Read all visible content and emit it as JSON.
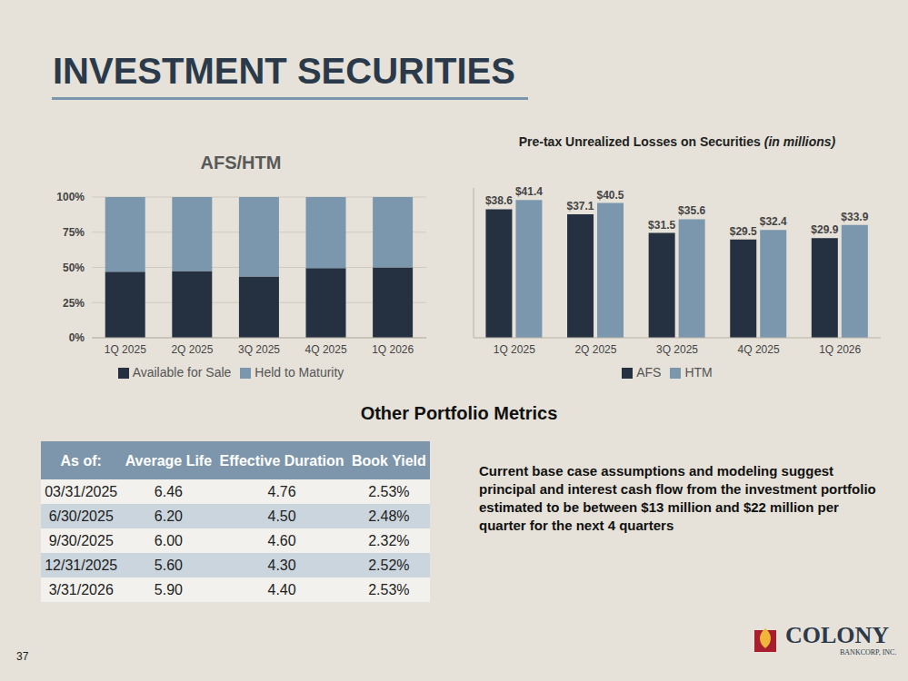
{
  "title": "INVESTMENT SECURITIES",
  "chart_data": [
    {
      "type": "bar",
      "title": "AFS/HTM",
      "categories": [
        "1Q 2025",
        "2Q 2025",
        "3Q 2025",
        "4Q 2025",
        "1Q 2026"
      ],
      "series": [
        {
          "name": "Available for Sale",
          "color": "#253140",
          "values": [
            47,
            47.5,
            43.5,
            49.5,
            50
          ]
        },
        {
          "name": "Held to Maturity",
          "color": "#7b97ad",
          "values": [
            53,
            52.5,
            56.5,
            50.5,
            50
          ]
        }
      ],
      "stacked": true,
      "ylim": [
        0,
        100
      ],
      "yticks": [
        {
          "value": 0,
          "label": "0%"
        },
        {
          "value": 25,
          "label": "25%"
        },
        {
          "value": 50,
          "label": "50%"
        },
        {
          "value": 75,
          "label": "75%"
        },
        {
          "value": 100,
          "label": "100%"
        }
      ],
      "grid": true,
      "legend": "bottom"
    },
    {
      "type": "bar",
      "title": "Pre-tax Unrealized Losses on Securities",
      "subtitle": "(in millions)",
      "categories": [
        "1Q 2025",
        "2Q 2025",
        "3Q 2025",
        "4Q 2025",
        "1Q 2026"
      ],
      "series": [
        {
          "name": "AFS",
          "color": "#253140",
          "values": [
            38.6,
            37.1,
            31.5,
            29.5,
            29.9
          ],
          "value_labels": [
            "$38.6",
            "$37.1",
            "$31.5",
            "$29.5",
            "$29.9"
          ]
        },
        {
          "name": "HTM",
          "color": "#7b97ad",
          "values": [
            41.4,
            40.5,
            35.6,
            32.4,
            33.9
          ],
          "value_labels": [
            "$41.4",
            "$40.5",
            "$35.6",
            "$32.4",
            "$33.9"
          ]
        }
      ],
      "ylim": [
        0,
        45
      ],
      "data_labels": true,
      "tick_labels": "x",
      "legend": "bottom"
    }
  ],
  "table": {
    "title": "Other Portfolio Metrics",
    "header": [
      "As of:",
      "Average Life",
      "Effective Duration",
      "Book Yield"
    ],
    "rows": [
      [
        "03/31/2025",
        "6.46",
        "4.76",
        "2.53%"
      ],
      [
        "6/30/2025",
        "6.20",
        "4.50",
        "2.48%"
      ],
      [
        "9/30/2025",
        "6.00",
        "4.60",
        "2.32%"
      ],
      [
        "12/31/2025",
        "5.60",
        "4.30",
        "2.52%"
      ],
      [
        "3/31/2026",
        "5.90",
        "4.40",
        "2.53%"
      ]
    ]
  },
  "note": "Current base case assumptions and modeling suggest principal and interest cash flow from the investment portfolio estimated to be between $13 million and $22 million per quarter for the next 4 quarters",
  "page": "37",
  "logo": {
    "name": "COLONY",
    "sub": "BANKCORP, INC."
  }
}
